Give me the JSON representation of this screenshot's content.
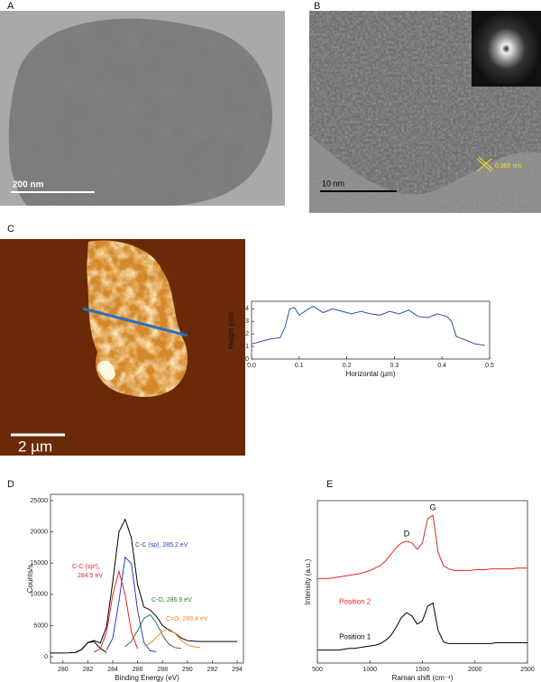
{
  "panel_labels": [
    "A",
    "B",
    "C",
    "D",
    "E"
  ],
  "images": {
    "A": {
      "scale_bar": "200 nm"
    },
    "B": {
      "scale_bar": "10 nm",
      "lattice_spacing": "0.365 nm"
    },
    "C": {
      "scale_bar": "2 µm"
    }
  },
  "chart_data": [
    {
      "type": "line",
      "xlabel": "Horizontal (µm)",
      "ylabel": "Height (nm)",
      "x": [
        0,
        0.02,
        0.04,
        0.06,
        0.07,
        0.08,
        0.09,
        0.1,
        0.12,
        0.13,
        0.15,
        0.17,
        0.19,
        0.21,
        0.23,
        0.25,
        0.27,
        0.29,
        0.31,
        0.33,
        0.35,
        0.37,
        0.39,
        0.41,
        0.42,
        0.43,
        0.45,
        0.47,
        0.49
      ],
      "series": [
        {
          "color": "#2b4fa8",
          "values": [
            1.2,
            1.4,
            1.6,
            1.7,
            2.5,
            4.0,
            4.1,
            3.5,
            4.0,
            4.2,
            3.7,
            4.0,
            3.8,
            3.6,
            3.8,
            3.6,
            3.5,
            3.8,
            3.6,
            3.9,
            3.4,
            3.3,
            3.6,
            3.4,
            3.0,
            1.8,
            1.5,
            1.2,
            1.1
          ]
        }
      ],
      "xlim": [
        0,
        0.5
      ],
      "xticks": [
        {
          "value": 0,
          "label": "0.0"
        },
        0.1,
        0.2,
        0.3,
        0.4,
        0.5
      ],
      "ylim": [
        0,
        4.6
      ],
      "yticks": [
        0,
        1,
        2,
        3,
        4
      ]
    },
    {
      "type": "line",
      "xlabel": "Binding Energy (eV)",
      "ylabel": "Counts/s",
      "x": [
        279,
        279.5,
        280,
        280.5,
        281,
        281.5,
        282,
        282.5,
        283,
        283.5,
        284,
        284.5,
        285,
        285.5,
        286,
        286.5,
        287,
        287.5,
        288,
        288.5,
        289,
        289.5,
        290,
        290.5,
        291,
        291.5,
        292,
        292.5,
        293,
        293.5,
        294
      ],
      "series": [
        {
          "color": "#000000",
          "values": [
            600,
            600,
            600,
            620,
            700,
            1200,
            2300,
            2600,
            2200,
            4800,
            12000,
            20000,
            22000,
            19000,
            11500,
            8000,
            7500,
            6500,
            5000,
            4300,
            3800,
            3000,
            2600,
            2500,
            2450,
            2450,
            2450,
            2450,
            2450,
            2450,
            2450
          ]
        },
        {
          "color": "#000000",
          "values": [
            null,
            null,
            null,
            null,
            670,
            1160,
            2270,
            2450,
            1350,
            710,
            null,
            null,
            null,
            null,
            null,
            null,
            null,
            null,
            null,
            null,
            null,
            null,
            null,
            null,
            null,
            null,
            null,
            null,
            null,
            null,
            null
          ]
        },
        {
          "color": "#e8231f",
          "values": [
            null,
            null,
            null,
            null,
            null,
            null,
            null,
            750,
            1270,
            3950,
            9890,
            13700,
            9890,
            3950,
            1270,
            null,
            null,
            null,
            null,
            null,
            null,
            null,
            null,
            null,
            null,
            null,
            null,
            null,
            null,
            null,
            null
          ]
        },
        {
          "color": "#2a3fb5",
          "values": [
            null,
            null,
            null,
            null,
            null,
            null,
            null,
            null,
            null,
            1090,
            2960,
            8910,
            15930,
            14910,
            7380,
            2320,
            980,
            820,
            null,
            null,
            null,
            null,
            null,
            null,
            null,
            null,
            null,
            null,
            null,
            null,
            null
          ]
        },
        {
          "color": "#2e7d32",
          "values": [
            null,
            null,
            null,
            null,
            null,
            null,
            null,
            null,
            null,
            null,
            null,
            null,
            1630,
            2490,
            4220,
            6140,
            6750,
            5450,
            3440,
            2040,
            1480,
            1330,
            null,
            null,
            null,
            null,
            null,
            null,
            null,
            null,
            null
          ]
        },
        {
          "color": "#ef8a2e",
          "values": [
            null,
            null,
            null,
            null,
            null,
            null,
            null,
            null,
            null,
            null,
            null,
            null,
            null,
            null,
            null,
            1680,
            2150,
            3090,
            4140,
            4470,
            3770,
            2670,
            1910,
            1600,
            1520,
            null,
            null,
            null,
            null,
            null,
            null
          ]
        }
      ],
      "annotations": [
        {
          "text": "C-C (sp²),",
          "color": "#e8231f"
        },
        {
          "text": "284.5 eV",
          "color": "#e8231f"
        },
        {
          "text": "C-C (sp), 285.2 eV",
          "color": "#2a3fb5"
        },
        {
          "text": "C-O, 286.9 eV",
          "color": "#2e7d32"
        },
        {
          "text": "C=O, 288.4 eV",
          "color": "#ef8a2e"
        }
      ],
      "xlim": [
        279,
        294.5
      ],
      "xticks": [
        280,
        282,
        284,
        286,
        288,
        290,
        292,
        294
      ],
      "ylim": [
        -1000,
        26000
      ],
      "yticks": [
        0,
        5000,
        10000,
        15000,
        20000,
        25000
      ]
    },
    {
      "type": "line",
      "xlabel": "Raman shift (cm⁻¹)",
      "ylabel": "Intensity (a.u.)",
      "x": [
        500,
        550,
        600,
        650,
        700,
        750,
        800,
        850,
        900,
        950,
        1000,
        1050,
        1100,
        1150,
        1200,
        1250,
        1300,
        1350,
        1400,
        1450,
        1500,
        1550,
        1600,
        1650,
        1700,
        1750,
        1800,
        1850,
        1900,
        1950,
        2000,
        2050,
        2100,
        2150,
        2200,
        2250,
        2300,
        2350,
        2400,
        2450,
        2500
      ],
      "series": [
        {
          "name": "Position 1",
          "color": "#000000",
          "values": [
            8,
            8,
            8,
            8,
            8,
            8.5,
            9,
            9,
            9.5,
            10,
            10.5,
            11,
            12,
            14,
            17,
            22,
            28,
            31,
            29,
            24,
            26,
            35,
            37,
            20,
            13,
            12,
            12,
            12,
            12,
            12,
            12,
            12,
            12,
            12,
            12.5,
            12.5,
            12.5,
            12.5,
            12.5,
            12.5,
            12.5
          ]
        },
        {
          "name": "Position 2",
          "color": "#e8231f",
          "values": [
            52,
            52,
            52,
            52.5,
            53,
            53.5,
            54,
            54.5,
            55,
            56,
            57,
            58.5,
            60,
            63,
            67,
            71,
            74,
            75,
            74,
            70,
            74,
            89,
            91,
            68,
            60,
            58,
            57,
            57,
            57,
            57,
            57.5,
            57.5,
            57.5,
            58,
            58,
            58,
            58,
            58,
            58.5,
            58.5,
            58.5
          ]
        }
      ],
      "annotations": [
        {
          "text": "D",
          "color": "#000000"
        },
        {
          "text": "G",
          "color": "#000000"
        }
      ],
      "xlim": [
        500,
        2500
      ],
      "xticks": [
        500,
        1000,
        1500,
        2000,
        2500
      ],
      "ylim": [
        0,
        100
      ]
    }
  ]
}
